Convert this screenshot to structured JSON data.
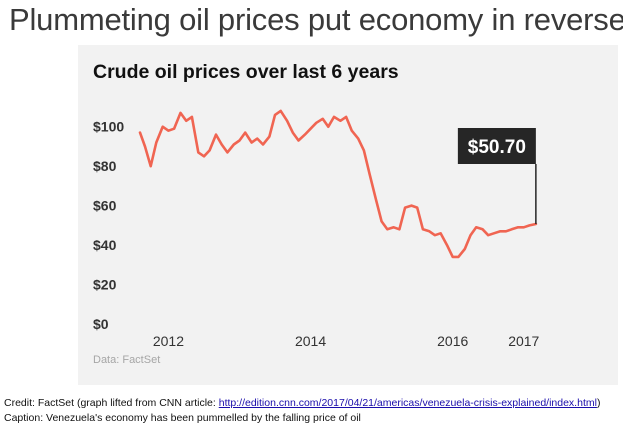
{
  "headline": "Plummeting oil prices put economy in reverse",
  "credit": {
    "prefix": "Credit: FactSet (graph lifted from CNN article: ",
    "url": "http://edition.cnn.com/2017/04/21/americas/venezuela-crisis-explained/index.html",
    "suffix": ")"
  },
  "caption": "Caption: Venezuela's economy has been pummelled by the falling price of oil",
  "colors": {
    "line": "#f06552",
    "callout_bg": "#262626",
    "callout_text": "#ffffff",
    "panel_bg": "#f2f2f2",
    "axis_text": "#333333",
    "source_text": "#a6a6a6"
  },
  "chart_data": {
    "type": "line",
    "title": "Crude oil prices over last 6 years",
    "source": "Data: FactSet",
    "ylim": [
      0,
      110
    ],
    "yticks": [
      0,
      20,
      40,
      60,
      80,
      100
    ],
    "ytick_labels": [
      "$0",
      "$20",
      "$40",
      "$60",
      "$80",
      "$100"
    ],
    "xlim": [
      2011.6,
      2017.2
    ],
    "xticks": [
      2012,
      2014,
      2016,
      2017
    ],
    "xtick_labels": [
      "2012",
      "2014",
      "2016",
      "2017"
    ],
    "grid": false,
    "callout": {
      "label": "$50.70",
      "value": 50.7
    },
    "series": [
      {
        "x": [
          2011.6,
          2011.67,
          2011.75,
          2011.83,
          2011.92,
          2012.0,
          2012.08,
          2012.17,
          2012.25,
          2012.33,
          2012.42,
          2012.5,
          2012.58,
          2012.67,
          2012.75,
          2012.83,
          2012.92,
          2013.0,
          2013.08,
          2013.17,
          2013.25,
          2013.33,
          2013.42,
          2013.5,
          2013.58,
          2013.67,
          2013.75,
          2013.83,
          2013.92,
          2014.0,
          2014.08,
          2014.17,
          2014.25,
          2014.33,
          2014.42,
          2014.5,
          2014.58,
          2014.67,
          2014.75,
          2014.83,
          2014.92,
          2015.0,
          2015.08,
          2015.17,
          2015.25,
          2015.33,
          2015.42,
          2015.5,
          2015.58,
          2015.67,
          2015.75,
          2015.83,
          2015.92,
          2016.0,
          2016.08,
          2016.17,
          2016.25,
          2016.33,
          2016.42,
          2016.5,
          2016.58,
          2016.67,
          2016.75,
          2016.83,
          2016.92,
          2017.0,
          2017.08,
          2017.17
        ],
        "y": [
          97,
          90,
          80,
          92,
          100,
          98,
          99,
          107,
          103,
          105,
          87,
          85,
          88,
          96,
          91,
          87,
          91,
          93,
          97,
          92,
          94,
          91,
          95,
          106,
          108,
          103,
          97,
          93,
          96,
          99,
          102,
          104,
          100,
          105,
          103,
          105,
          98,
          94,
          88,
          76,
          63,
          52,
          48,
          49,
          48,
          59,
          60,
          59,
          48,
          47,
          45,
          46,
          40,
          34,
          34,
          38,
          45,
          49,
          48,
          45,
          46,
          47,
          47,
          48,
          49,
          49,
          50,
          50.7
        ]
      }
    ]
  }
}
